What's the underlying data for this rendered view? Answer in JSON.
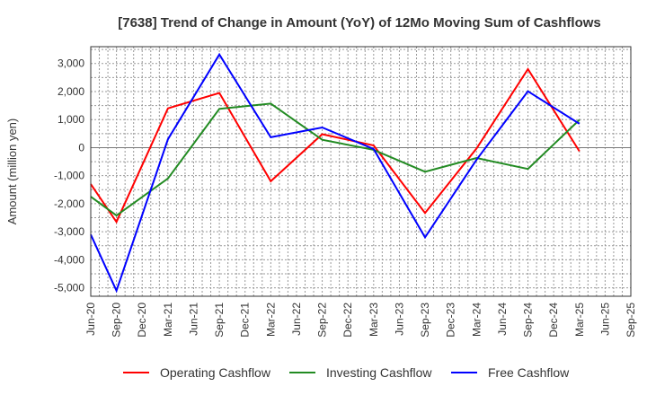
{
  "chart_data": {
    "type": "line",
    "title": "[7638]  Trend of Change in Amount (YoY) of 12Mo Moving Sum of Cashflows",
    "xlabel": "",
    "ylabel": "Amount (million yen)",
    "ylim": [
      -5300,
      3600
    ],
    "yticks": [
      3000,
      2000,
      1000,
      0,
      -1000,
      -2000,
      -3000,
      -4000,
      -5000
    ],
    "ytick_labels": [
      "3,000",
      "2,000",
      "1,000",
      "0",
      "-1,000",
      "-2,000",
      "-3,000",
      "-4,000",
      "-5,000"
    ],
    "categories": [
      "Jun-20",
      "Sep-20",
      "Dec-20",
      "Mar-21",
      "Jun-21",
      "Sep-21",
      "Dec-21",
      "Mar-22",
      "Jun-22",
      "Sep-22",
      "Dec-22",
      "Mar-23",
      "Jun-23",
      "Sep-23",
      "Dec-23",
      "Mar-24",
      "Jun-24",
      "Sep-24",
      "Dec-24",
      "Mar-25",
      "Jun-25",
      "Sep-25"
    ],
    "grid": true,
    "legend_position": "bottom",
    "series": [
      {
        "name": "Operating Cashflow",
        "color": "#ff0000",
        "x": [
          "Jun-20",
          "Sep-20",
          "Mar-21",
          "Sep-21",
          "Mar-22",
          "Sep-22",
          "Mar-23",
          "Sep-23",
          "Mar-24",
          "Sep-24",
          "Mar-25"
        ],
        "values": [
          -1300,
          -2650,
          1400,
          1950,
          -1200,
          480,
          80,
          -2330,
          -30,
          2800,
          -130
        ]
      },
      {
        "name": "Investing Cashflow",
        "color": "#228b22",
        "x": [
          "Jun-20",
          "Sep-20",
          "Mar-21",
          "Sep-21",
          "Mar-22",
          "Sep-22",
          "Mar-23",
          "Sep-23",
          "Mar-24",
          "Sep-24",
          "Mar-25"
        ],
        "values": [
          -1750,
          -2420,
          -1100,
          1380,
          1570,
          280,
          -80,
          -860,
          -370,
          -760,
          990
        ]
      },
      {
        "name": "Free Cashflow",
        "color": "#0000ff",
        "x": [
          "Jun-20",
          "Sep-20",
          "Mar-21",
          "Sep-21",
          "Mar-22",
          "Sep-22",
          "Mar-23",
          "Sep-23",
          "Mar-24",
          "Sep-24",
          "Mar-25"
        ],
        "values": [
          -3100,
          -5100,
          300,
          3320,
          370,
          720,
          -50,
          -3200,
          -430,
          2010,
          850
        ]
      }
    ]
  }
}
